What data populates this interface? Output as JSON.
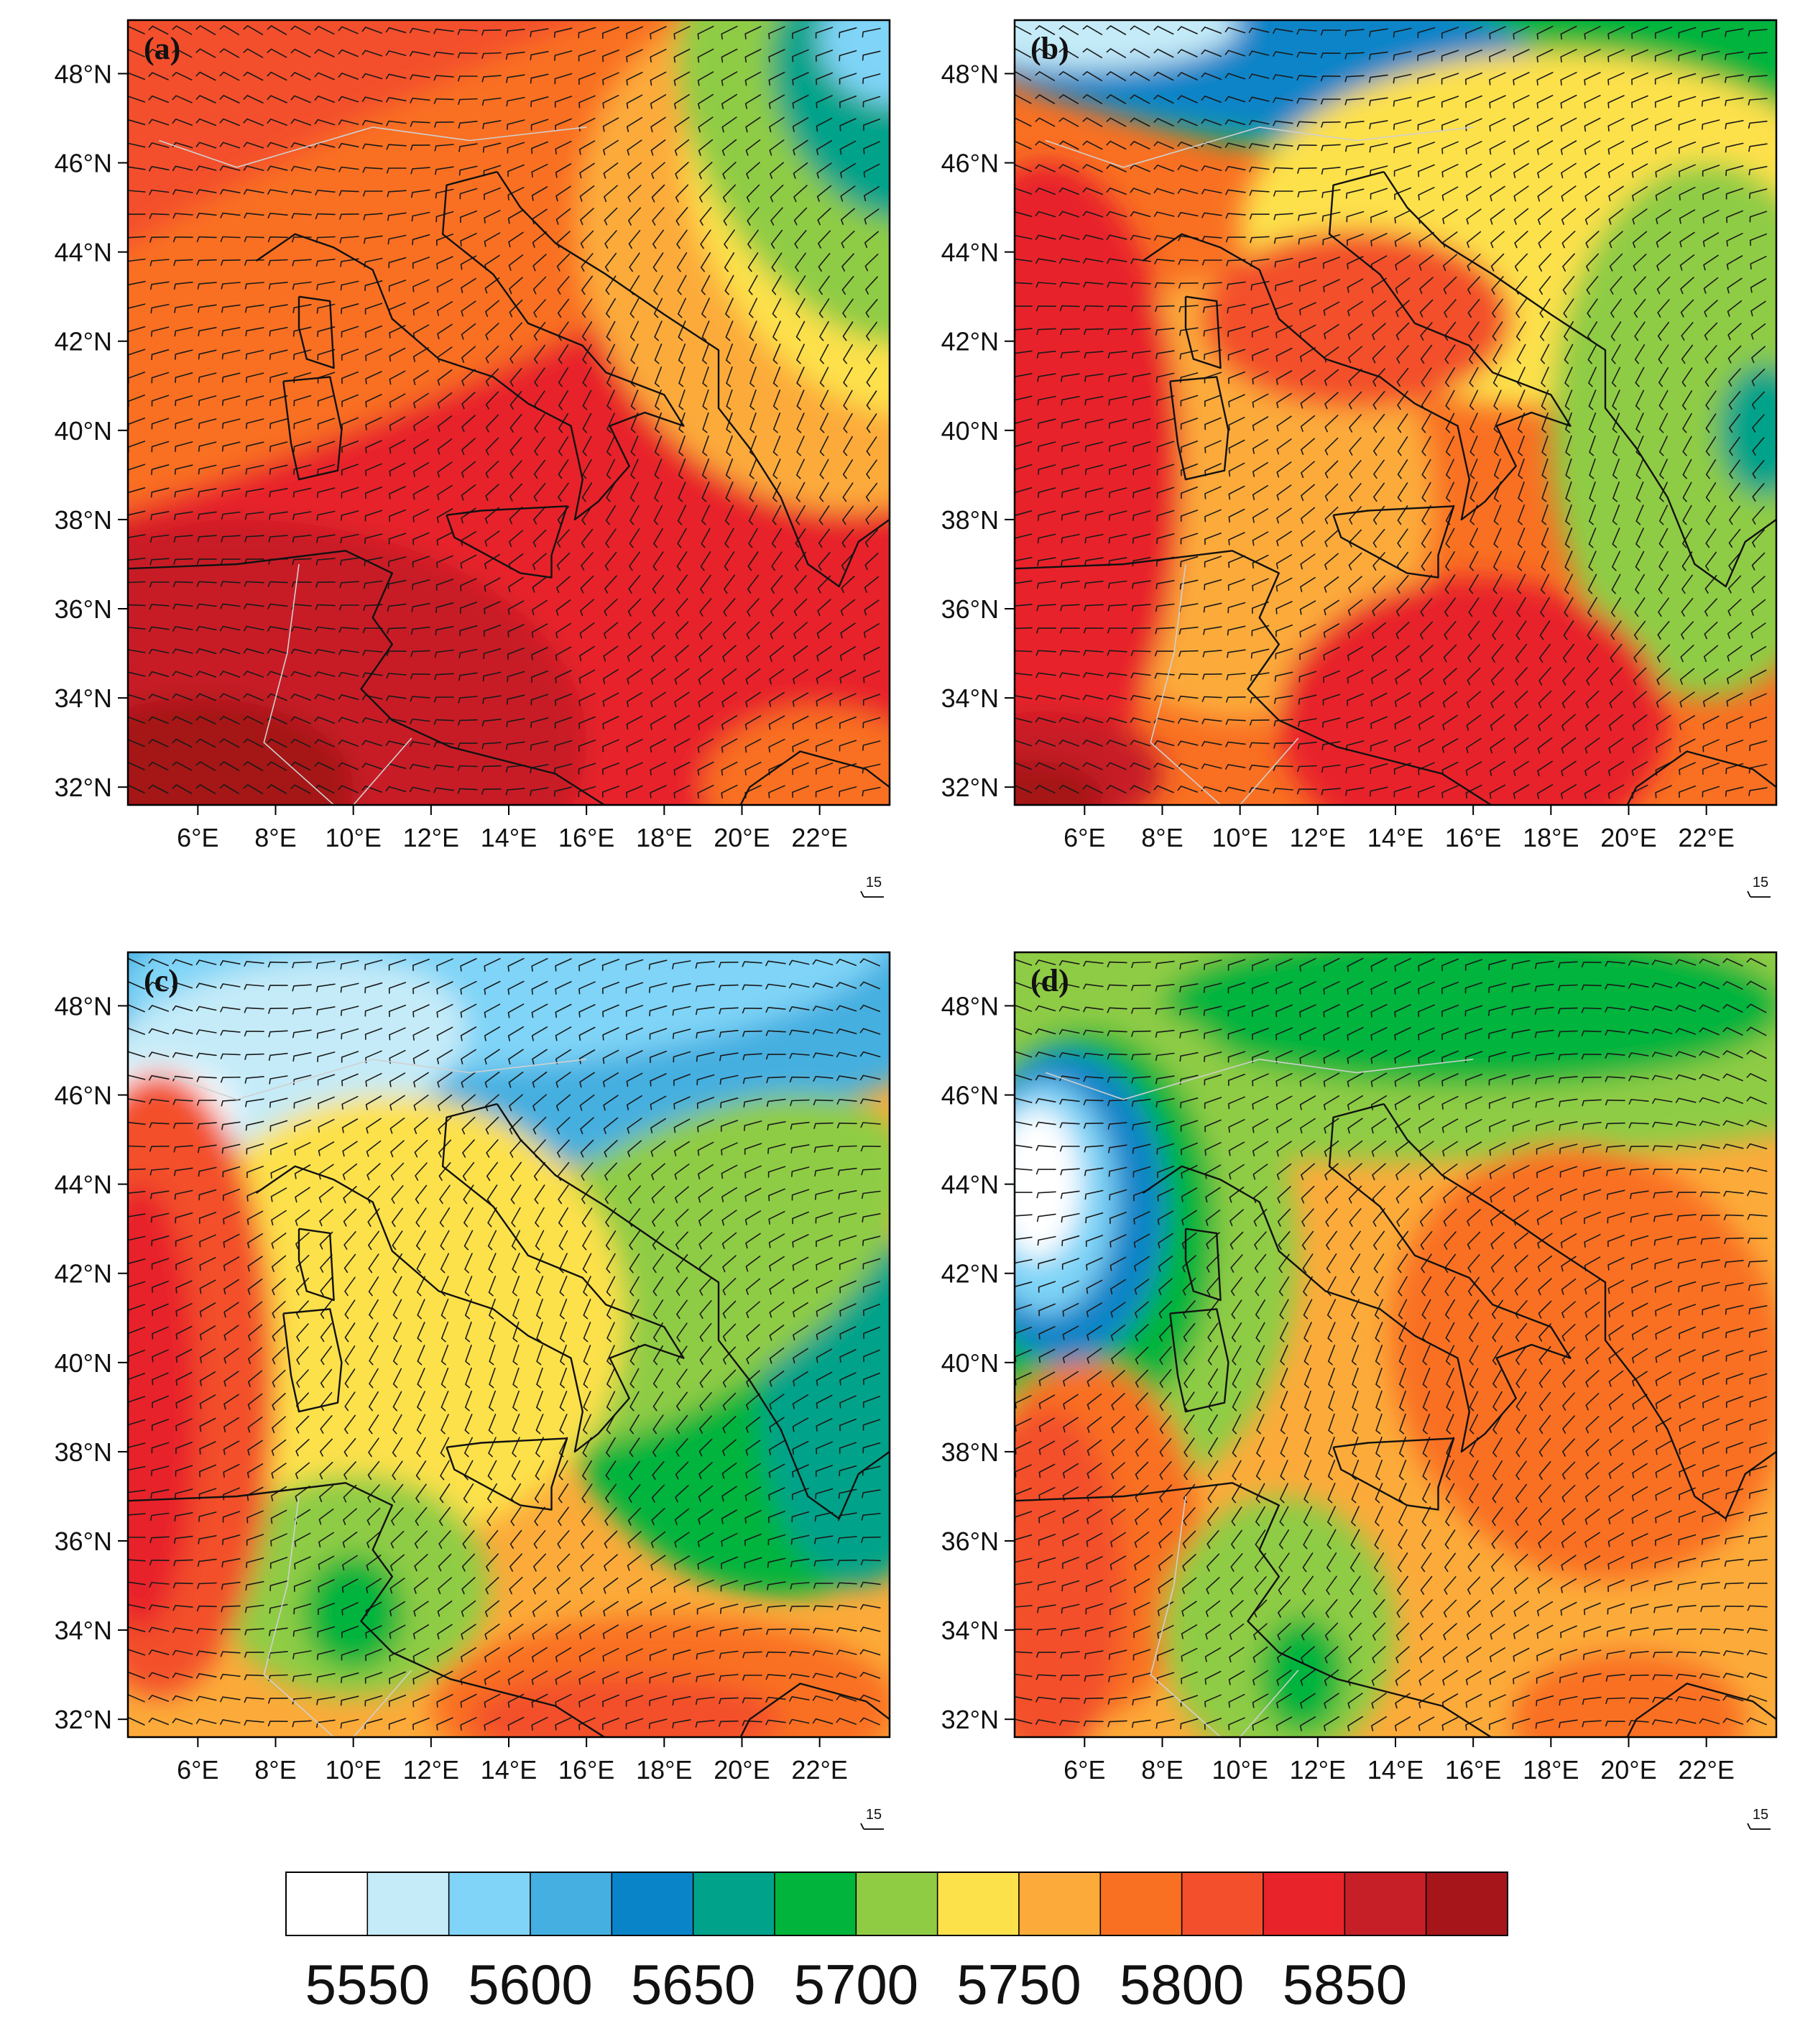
{
  "panels": [
    {
      "id": "a",
      "label": "(a)"
    },
    {
      "id": "b",
      "label": "(b)"
    },
    {
      "id": "c",
      "label": "(c)"
    },
    {
      "id": "d",
      "label": "(d)"
    }
  ],
  "lat_labels": [
    "48°N",
    "46°N",
    "44°N",
    "42°N",
    "40°N",
    "38°N",
    "36°N",
    "34°N",
    "32°N"
  ],
  "lon_labels": [
    "6°E",
    "8°E",
    "10°E",
    "12°E",
    "14°E",
    "16°E",
    "18°E",
    "20°E",
    "22°E"
  ],
  "wind_reference": "15",
  "colorbar": {
    "colors": [
      "#ffffff",
      "#c5ebf8",
      "#7fd4f7",
      "#44afe0",
      "#0a84c8",
      "#00a38a",
      "#00b43c",
      "#8fcc44",
      "#fde14b",
      "#fcab3a",
      "#f97022",
      "#f34f2c",
      "#e8232a",
      "#c71f28",
      "#a51519"
    ],
    "tick_labels": [
      "5550",
      "5600",
      "5650",
      "5700",
      "5750",
      "5800",
      "5850"
    ]
  },
  "colors": {
    "coast": "#111111",
    "border": "#d0d0d0",
    "barb": "#1a1a1a"
  }
}
